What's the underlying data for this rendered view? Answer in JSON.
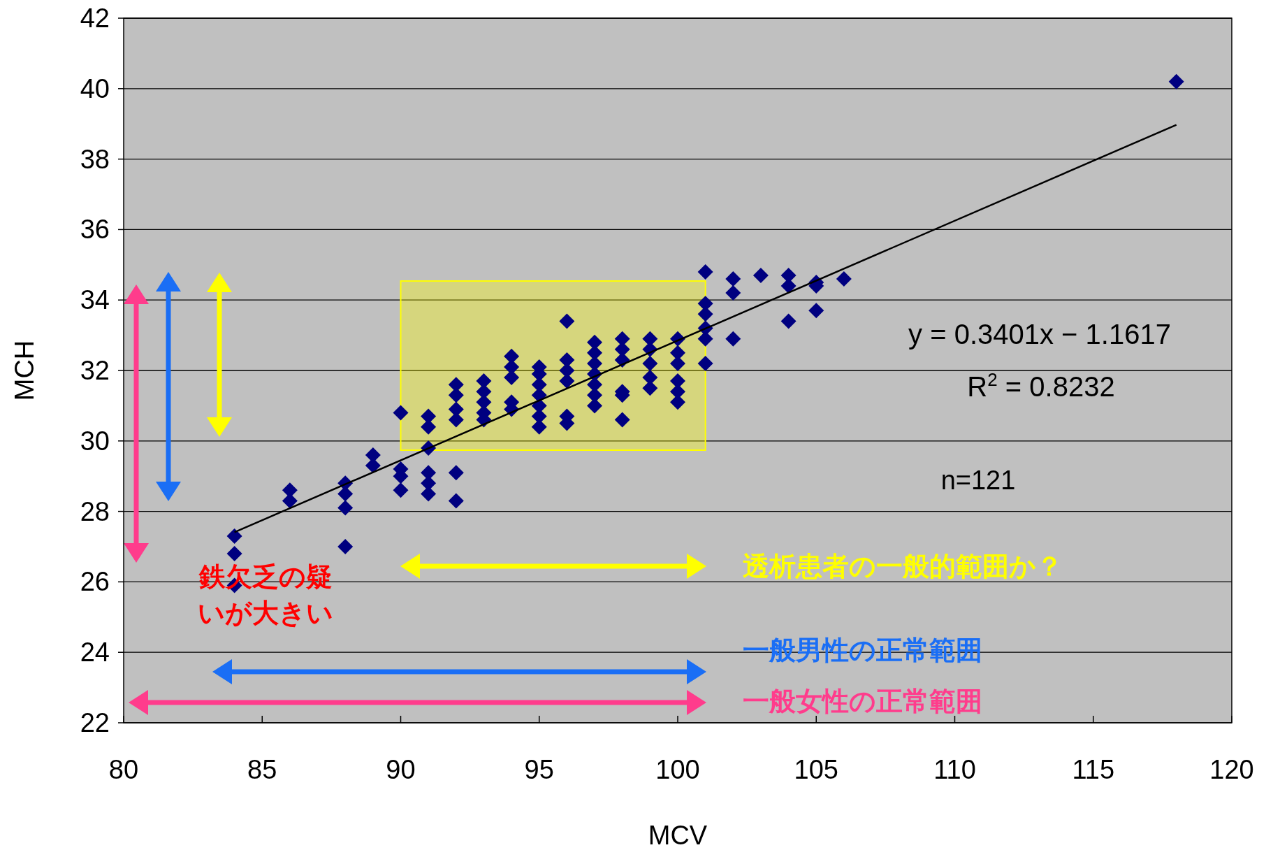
{
  "chart_data": {
    "type": "scatter",
    "xlabel": "MCV",
    "ylabel": "MCH",
    "xlim": [
      80,
      120
    ],
    "xticks": [
      80,
      85,
      90,
      95,
      100,
      105,
      110,
      115,
      120
    ],
    "ylim": [
      22,
      42
    ],
    "yticks": [
      22,
      24,
      26,
      28,
      30,
      32,
      34,
      36,
      38,
      40,
      42
    ],
    "grid": "y",
    "legend": false,
    "marker": "diamond",
    "series": [
      {
        "type": "scatter",
        "color": "#000080",
        "x": [
          84,
          84,
          84,
          86,
          86,
          88,
          88,
          88,
          88,
          89,
          89,
          90,
          90,
          90,
          90,
          91,
          91,
          91,
          91,
          91,
          91,
          92,
          92,
          92,
          92,
          92,
          92,
          93,
          93,
          93,
          93,
          93,
          94,
          94,
          94,
          94,
          94,
          95,
          95,
          95,
          95,
          95,
          95,
          95,
          96,
          96,
          96,
          96,
          96,
          96,
          97,
          97,
          97,
          97,
          97,
          97,
          97,
          98,
          98,
          98,
          98,
          98,
          98,
          99,
          99,
          99,
          99,
          99,
          100,
          100,
          100,
          100,
          100,
          100,
          101,
          101,
          101,
          101,
          101,
          101,
          102,
          102,
          102,
          103,
          104,
          104,
          104,
          105,
          105,
          105,
          106,
          118
        ],
        "values": [
          27.3,
          26.8,
          25.9,
          28.6,
          28.3,
          28.8,
          28.5,
          28.1,
          27.0,
          29.6,
          29.3,
          30.8,
          29.2,
          29.0,
          28.6,
          30.7,
          30.4,
          29.8,
          29.1,
          28.8,
          28.5,
          31.6,
          31.3,
          30.9,
          30.6,
          29.1,
          28.3,
          31.7,
          31.4,
          31.1,
          30.8,
          30.6,
          32.4,
          32.1,
          31.8,
          31.1,
          30.9,
          32.1,
          31.9,
          31.6,
          31.3,
          31.0,
          30.7,
          30.4,
          33.4,
          32.3,
          32.0,
          31.7,
          30.7,
          30.5,
          32.8,
          32.5,
          32.2,
          31.9,
          31.6,
          31.3,
          31.0,
          32.9,
          32.6,
          32.3,
          31.4,
          31.3,
          30.6,
          32.9,
          32.6,
          32.2,
          31.8,
          31.5,
          32.9,
          32.5,
          32.2,
          31.7,
          31.4,
          31.1,
          34.8,
          33.9,
          33.6,
          33.2,
          32.9,
          32.2,
          34.6,
          34.2,
          32.9,
          34.7,
          34.7,
          34.4,
          33.4,
          34.5,
          34.4,
          33.7,
          34.6,
          40.2
        ]
      },
      {
        "type": "line",
        "color": "#000000",
        "marker": "none",
        "x": [
          84,
          118
        ],
        "values": [
          27.41,
          38.97
        ]
      }
    ],
    "bands": [
      {
        "axis": "x",
        "from": 90,
        "to": 101,
        "color": "#ffff00"
      }
    ],
    "annotations": [
      "y = 0.3401x − 1.1617",
      "R$^{2}$ = 0.8232",
      "n=121",
      "鉄欠乏の疑いが大きい",
      "透析患者の一般的範囲か？",
      "一般男性の正常範囲",
      "一般女性の正常範囲"
    ]
  }
}
